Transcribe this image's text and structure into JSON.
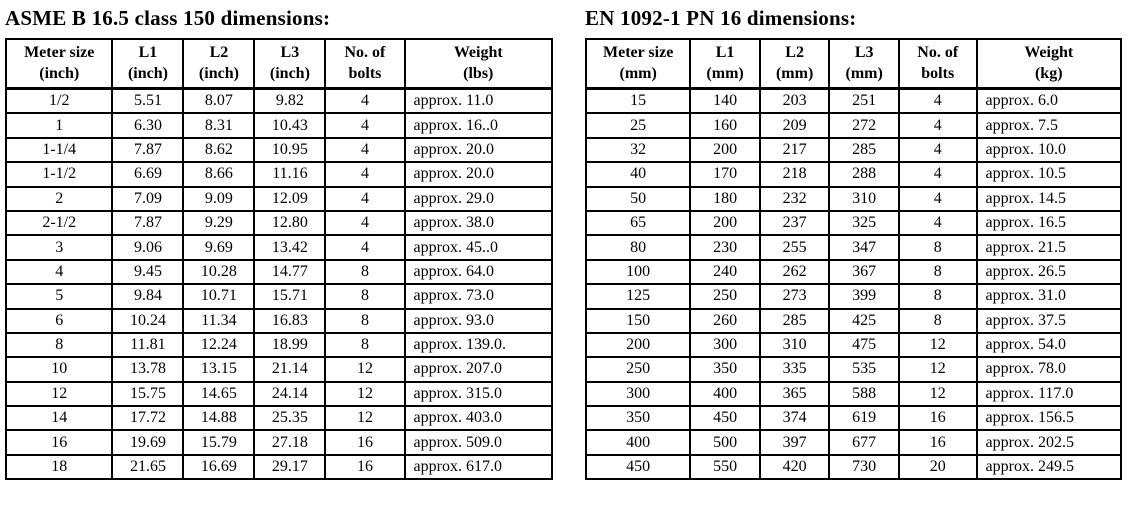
{
  "tables": [
    {
      "title": "ASME B 16.5 class 150 dimensions:",
      "headers": [
        [
          "Meter size",
          "(inch)"
        ],
        [
          "L1",
          "(inch)"
        ],
        [
          "L2",
          "(inch)"
        ],
        [
          "L3",
          "(inch)"
        ],
        [
          "No. of",
          "bolts"
        ],
        [
          "Weight",
          "(lbs)"
        ]
      ],
      "rows": [
        [
          "1/2",
          "5.51",
          "8.07",
          "9.82",
          "4",
          "approx. 11.0"
        ],
        [
          "1",
          "6.30",
          "8.31",
          "10.43",
          "4",
          "approx. 16..0"
        ],
        [
          "1-1/4",
          "7.87",
          "8.62",
          "10.95",
          "4",
          "approx. 20.0"
        ],
        [
          "1-1/2",
          "6.69",
          "8.66",
          "11.16",
          "4",
          "approx. 20.0"
        ],
        [
          "2",
          "7.09",
          "9.09",
          "12.09",
          "4",
          "approx. 29.0"
        ],
        [
          "2-1/2",
          "7.87",
          "9.29",
          "12.80",
          "4",
          "approx. 38.0"
        ],
        [
          "3",
          "9.06",
          "9.69",
          "13.42",
          "4",
          "approx. 45..0"
        ],
        [
          "4",
          "9.45",
          "10.28",
          "14.77",
          "8",
          "approx. 64.0"
        ],
        [
          "5",
          "9.84",
          "10.71",
          "15.71",
          "8",
          "approx. 73.0"
        ],
        [
          "6",
          "10.24",
          "11.34",
          "16.83",
          "8",
          "approx. 93.0"
        ],
        [
          "8",
          "11.81",
          "12.24",
          "18.99",
          "8",
          "approx. 139.0."
        ],
        [
          "10",
          "13.78",
          "13.15",
          "21.14",
          "12",
          "approx. 207.0"
        ],
        [
          "12",
          "15.75",
          "14.65",
          "24.14",
          "12",
          "approx. 315.0"
        ],
        [
          "14",
          "17.72",
          "14.88",
          "25.35",
          "12",
          "approx. 403.0"
        ],
        [
          "16",
          "19.69",
          "15.79",
          "27.18",
          "16",
          "approx. 509.0"
        ],
        [
          "18",
          "21.65",
          "16.69",
          "29.17",
          "16",
          "approx. 617.0"
        ]
      ]
    },
    {
      "title": "EN 1092-1 PN 16 dimensions:",
      "headers": [
        [
          "Meter size",
          "(mm)"
        ],
        [
          "L1",
          "(mm)"
        ],
        [
          "L2",
          "(mm)"
        ],
        [
          "L3",
          "(mm)"
        ],
        [
          "No. of",
          "bolts"
        ],
        [
          "Weight",
          "(kg)"
        ]
      ],
      "rows": [
        [
          "15",
          "140",
          "203",
          "251",
          "4",
          "approx. 6.0"
        ],
        [
          "25",
          "160",
          "209",
          "272",
          "4",
          "approx. 7.5"
        ],
        [
          "32",
          "200",
          "217",
          "285",
          "4",
          "approx. 10.0"
        ],
        [
          "40",
          "170",
          "218",
          "288",
          "4",
          "approx. 10.5"
        ],
        [
          "50",
          "180",
          "232",
          "310",
          "4",
          "approx. 14.5"
        ],
        [
          "65",
          "200",
          "237",
          "325",
          "4",
          "approx. 16.5"
        ],
        [
          "80",
          "230",
          "255",
          "347",
          "8",
          "approx. 21.5"
        ],
        [
          "100",
          "240",
          "262",
          "367",
          "8",
          "approx. 26.5"
        ],
        [
          "125",
          "250",
          "273",
          "399",
          "8",
          "approx. 31.0"
        ],
        [
          "150",
          "260",
          "285",
          "425",
          "8",
          "approx. 37.5"
        ],
        [
          "200",
          "300",
          "310",
          "475",
          "12",
          "approx. 54.0"
        ],
        [
          "250",
          "350",
          "335",
          "535",
          "12",
          "approx. 78.0"
        ],
        [
          "300",
          "400",
          "365",
          "588",
          "12",
          "approx. 117.0"
        ],
        [
          "350",
          "450",
          "374",
          "619",
          "16",
          "approx. 156.5"
        ],
        [
          "400",
          "500",
          "397",
          "677",
          "16",
          "approx. 202.5"
        ],
        [
          "450",
          "550",
          "420",
          "730",
          "20",
          "approx. 249.5"
        ]
      ]
    }
  ]
}
